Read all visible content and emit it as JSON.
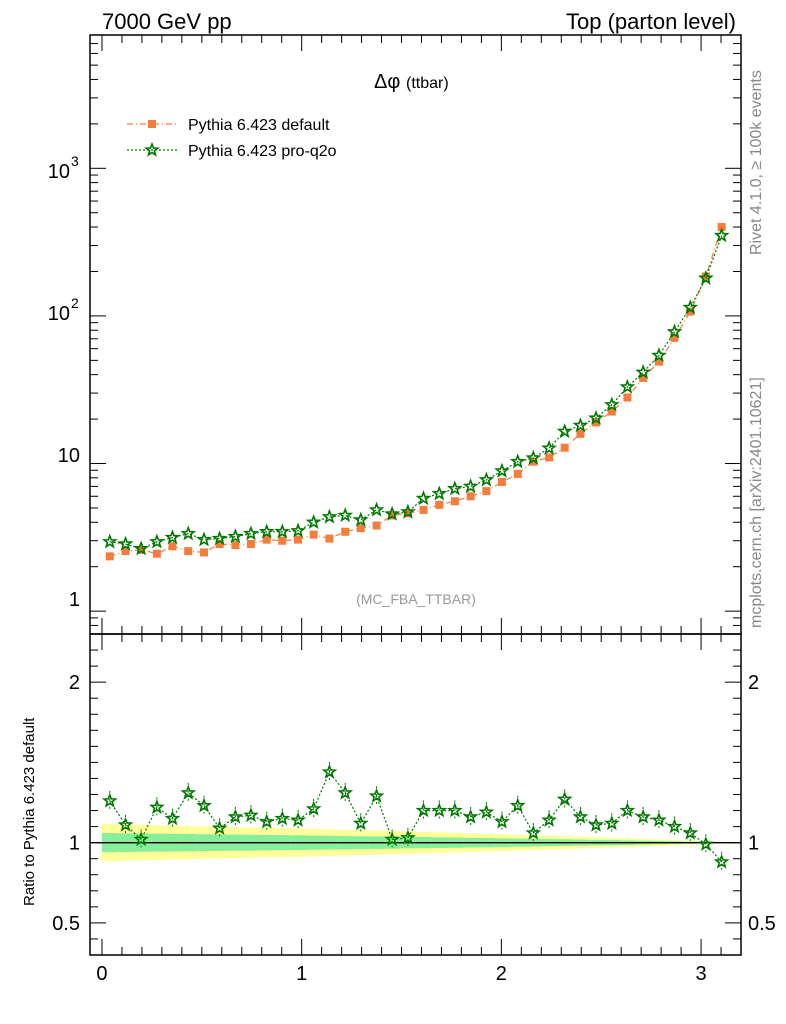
{
  "header": {
    "left_title": "7000 GeV pp",
    "right_title": "Top (parton level)"
  },
  "side_labels": {
    "rivet": "Rivet 4.1.0, ≥ 100k events",
    "mcplots": "mcplots.cern.ch [arXiv:2401.10621]"
  },
  "chart_data": [
    {
      "type": "line",
      "panel": "main",
      "title_symbol": "Δφ",
      "title_suffix": "(ttbar)",
      "analysis_label": "(MC_FBA_TTBAR)",
      "yscale": "log",
      "ylim": [
        0.7,
        8000
      ],
      "xlim": [
        -0.06,
        3.2
      ],
      "y_tick_labels": [
        "1",
        "10",
        "10",
        "10"
      ],
      "y_tick_exponents": [
        "",
        "",
        "2",
        "3"
      ],
      "legend_placement": "top-left",
      "x": [
        0.039,
        0.118,
        0.196,
        0.275,
        0.353,
        0.432,
        0.511,
        0.589,
        0.668,
        0.746,
        0.825,
        0.903,
        0.982,
        1.06,
        1.139,
        1.218,
        1.296,
        1.375,
        1.453,
        1.532,
        1.61,
        1.689,
        1.767,
        1.846,
        1.925,
        2.003,
        2.082,
        2.16,
        2.239,
        2.317,
        2.396,
        2.474,
        2.553,
        2.631,
        2.71,
        2.789,
        2.867,
        2.946,
        3.024,
        3.103
      ],
      "series": [
        {
          "name": "Pythia 6.423 default",
          "color": "#f47c3c",
          "marker": "square",
          "values": [
            2.35,
            2.55,
            2.6,
            2.45,
            2.75,
            2.55,
            2.5,
            2.85,
            2.8,
            2.85,
            3.05,
            3.0,
            3.05,
            3.3,
            3.1,
            3.45,
            3.65,
            3.8,
            4.45,
            4.6,
            4.85,
            5.25,
            5.55,
            6.0,
            6.5,
            7.5,
            8.5,
            10.3,
            11.0,
            12.8,
            15.9,
            19.0,
            22.5,
            28.0,
            38.0,
            49.0,
            71.0,
            107.0,
            185.0,
            400.0
          ]
        },
        {
          "name": "Pythia 6.423 pro-q2o",
          "color": "#007700",
          "marker": "star",
          "values": [
            2.95,
            2.85,
            2.65,
            2.95,
            3.15,
            3.35,
            3.05,
            3.1,
            3.2,
            3.35,
            3.45,
            3.45,
            3.5,
            4.0,
            4.35,
            4.45,
            4.15,
            4.85,
            4.55,
            4.7,
            5.8,
            6.25,
            6.75,
            7.0,
            7.75,
            8.9,
            10.3,
            10.9,
            12.7,
            16.5,
            18.1,
            20.3,
            25.0,
            33.0,
            41.5,
            54.0,
            78.0,
            114.0,
            180.0,
            350.0
          ]
        }
      ]
    },
    {
      "type": "line",
      "panel": "ratio",
      "ylabel": "Ratio to Pythia 6.423 default",
      "ylim": [
        0.3,
        2.3
      ],
      "xlim": [
        -0.06,
        3.2
      ],
      "y_ticks": [
        0.5,
        1,
        2
      ],
      "y_tick_labels": [
        "0.5",
        "1",
        "2"
      ],
      "x_ticks": [
        0,
        1,
        2,
        3
      ],
      "x_tick_labels": [
        "0",
        "1",
        "2",
        "3"
      ],
      "band_outer_color": "#ffff99",
      "band_inner_color": "#88ee99",
      "band_outer_halfwidth": [
        0.115,
        0.112,
        0.11,
        0.108,
        0.105,
        0.103,
        0.1,
        0.098,
        0.096,
        0.094,
        0.092,
        0.09,
        0.088,
        0.085,
        0.083,
        0.08,
        0.078,
        0.075,
        0.072,
        0.07,
        0.067,
        0.064,
        0.061,
        0.058,
        0.055,
        0.052,
        0.049,
        0.046,
        0.043,
        0.04,
        0.037,
        0.034,
        0.03,
        0.027,
        0.024,
        0.02,
        0.016,
        0.012,
        0.008,
        0.005
      ],
      "band_inner_halfwidth": [
        0.06,
        0.058,
        0.057,
        0.056,
        0.055,
        0.054,
        0.052,
        0.051,
        0.05,
        0.049,
        0.048,
        0.047,
        0.046,
        0.044,
        0.043,
        0.042,
        0.04,
        0.039,
        0.038,
        0.036,
        0.035,
        0.033,
        0.032,
        0.03,
        0.029,
        0.027,
        0.025,
        0.024,
        0.022,
        0.021,
        0.019,
        0.017,
        0.016,
        0.014,
        0.012,
        0.01,
        0.008,
        0.006,
        0.004,
        0.003
      ],
      "series": [
        {
          "name": "Pythia 6.423 pro-q2o / default",
          "color": "#007700",
          "marker": "star",
          "values": [
            1.26,
            1.11,
            1.02,
            1.22,
            1.15,
            1.31,
            1.23,
            1.09,
            1.16,
            1.17,
            1.13,
            1.15,
            1.14,
            1.21,
            1.44,
            1.31,
            1.12,
            1.29,
            1.02,
            1.03,
            1.2,
            1.2,
            1.2,
            1.16,
            1.19,
            1.13,
            1.23,
            1.06,
            1.14,
            1.27,
            1.16,
            1.11,
            1.12,
            1.2,
            1.16,
            1.14,
            1.1,
            1.06,
            0.99,
            0.88
          ]
        }
      ]
    }
  ]
}
